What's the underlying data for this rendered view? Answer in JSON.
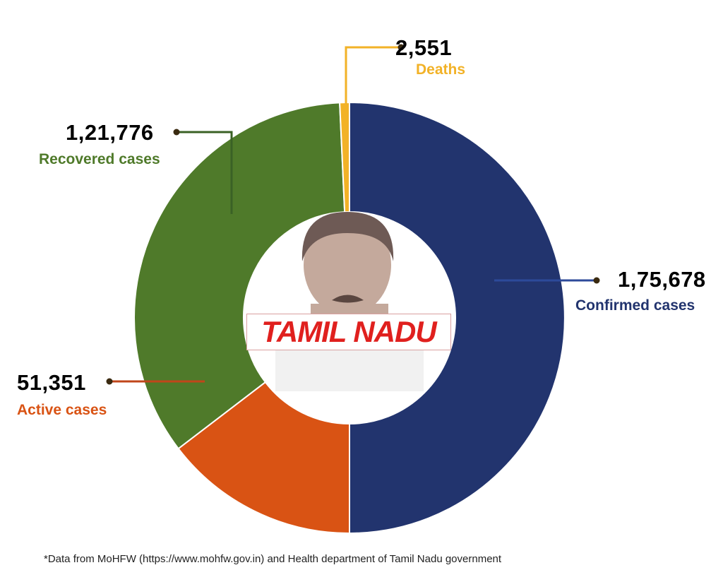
{
  "chart_data": {
    "type": "pie",
    "subtype": "donut",
    "center_label": "TAMIL NADU",
    "slices": [
      {
        "name": "Confirmed cases",
        "value": 175678,
        "label": "1,75,678",
        "color": "#22346e"
      },
      {
        "name": "Active cases",
        "value": 51351,
        "label": "51,351",
        "color": "#d95314"
      },
      {
        "name": "Recovered cases",
        "value": 121776,
        "label": "1,21,776",
        "color": "#4f7a2a"
      },
      {
        "name": "Deaths",
        "value": 2551,
        "label": "2,551",
        "color": "#f2b227"
      }
    ],
    "label_colors": {
      "Confirmed cases": "#22346e",
      "Active cases": "#d95314",
      "Recovered cases": "#4f7a2a",
      "Deaths": "#f2b227"
    }
  },
  "footnote": "*Data from MoHFW (https://www.mohfw.gov.in) and Health department of Tamil Nadu government"
}
